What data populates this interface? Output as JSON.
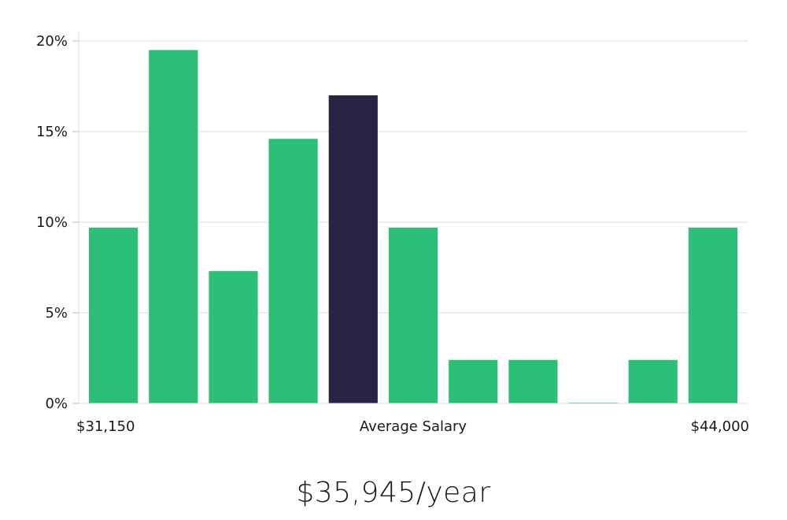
{
  "chart_data": {
    "type": "bar",
    "title": "",
    "xlabel": "Average Salary",
    "ylabel": "",
    "ylim": [
      0,
      20
    ],
    "y_ticks": [
      0,
      5,
      10,
      15,
      20
    ],
    "y_tick_labels": [
      "0%",
      "5%",
      "10%",
      "15%",
      "20%"
    ],
    "x_min_label": "$31,150",
    "x_max_label": "$44,000",
    "values": [
      9.7,
      19.5,
      7.3,
      14.6,
      17.0,
      9.7,
      2.4,
      2.4,
      0.0,
      2.4,
      9.7
    ],
    "highlight_index": 4,
    "grid": true
  },
  "colors": {
    "bar": "#2bbf77",
    "highlight": "#272446",
    "grid": "#dddddd",
    "axis": "#bbbbbb"
  },
  "summary": {
    "average_salary": "$35,945/year"
  }
}
